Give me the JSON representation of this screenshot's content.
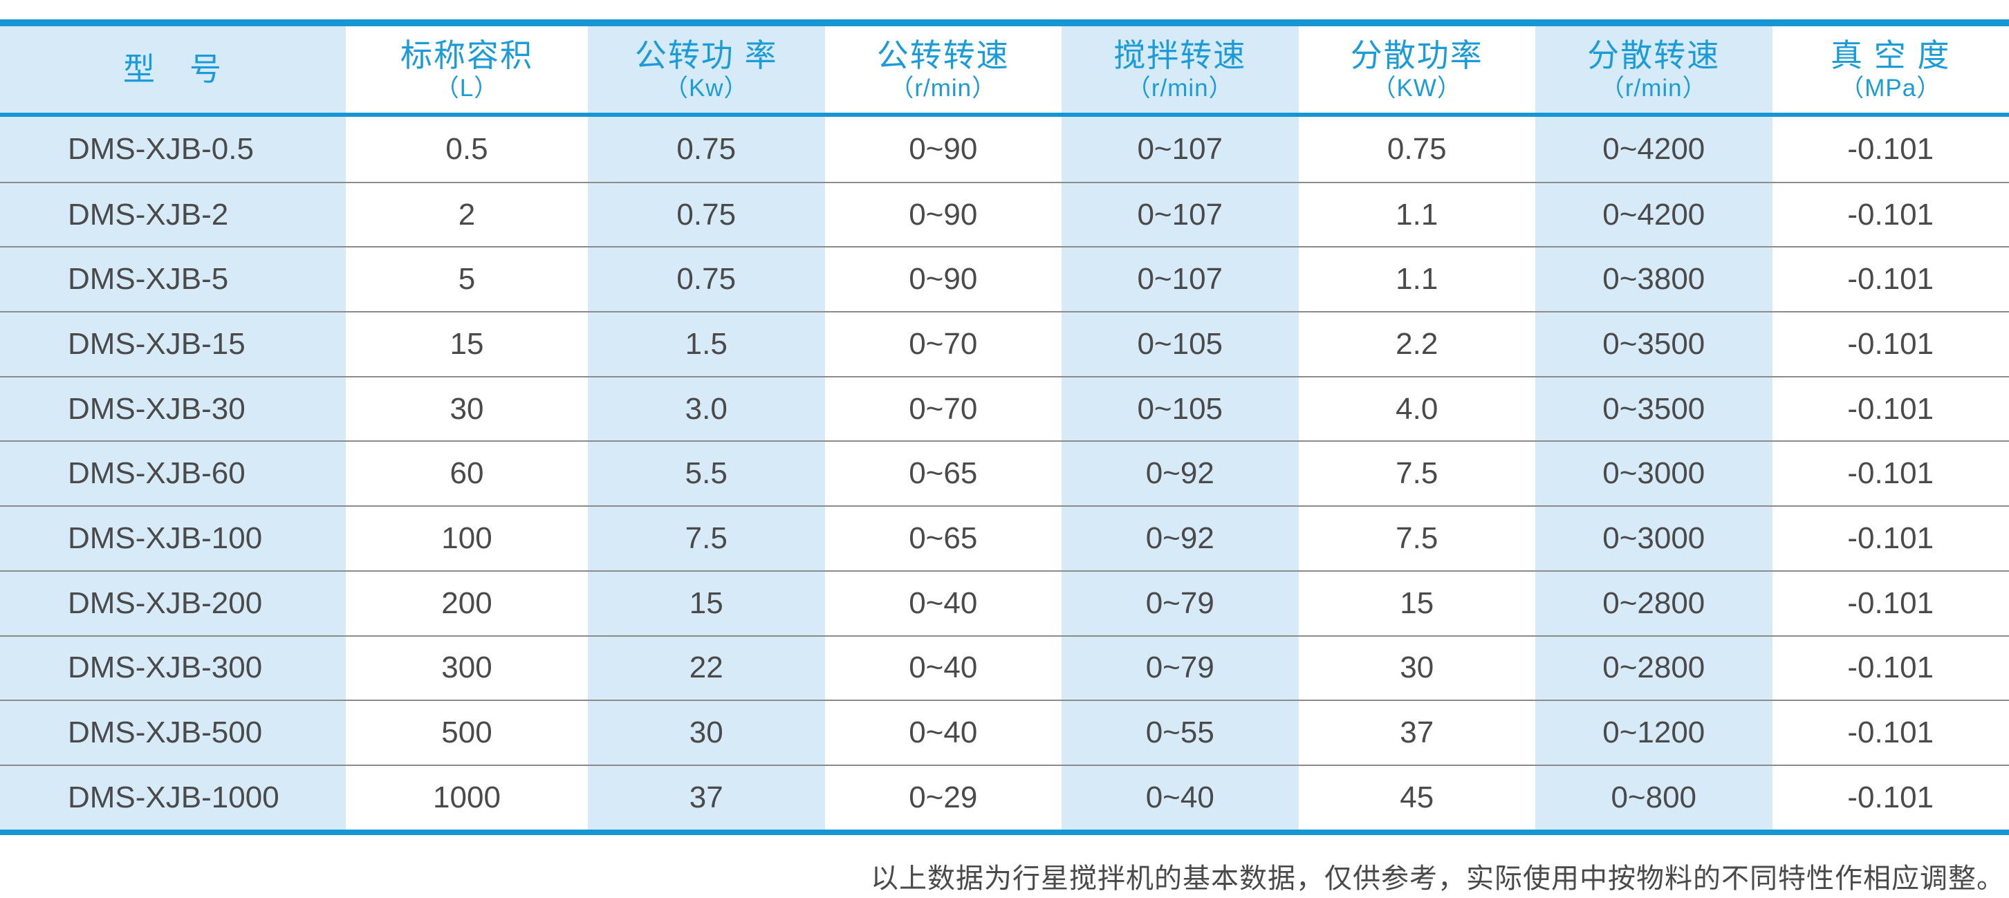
{
  "chart_data": {
    "type": "table",
    "columns": [
      {
        "title": "型　号",
        "unit": ""
      },
      {
        "title": "标称容积",
        "unit": "（L）"
      },
      {
        "title": "公转功 率",
        "unit": "（Kw）"
      },
      {
        "title": "公转转速",
        "unit": "（r/min）"
      },
      {
        "title": "搅拌转速",
        "unit": "（r/min）"
      },
      {
        "title": "分散功率",
        "unit": "（KW）"
      },
      {
        "title": "分散转速",
        "unit": "（r/min）"
      },
      {
        "title": "真 空 度",
        "unit": "（MPa）"
      }
    ],
    "rows": [
      [
        "DMS-XJB-0.5",
        "0.5",
        "0.75",
        "0~90",
        "0~107",
        "0.75",
        "0~4200",
        "-0.101"
      ],
      [
        "DMS-XJB-2",
        "2",
        "0.75",
        "0~90",
        "0~107",
        "1.1",
        "0~4200",
        "-0.101"
      ],
      [
        "DMS-XJB-5",
        "5",
        "0.75",
        "0~90",
        "0~107",
        "1.1",
        "0~3800",
        "-0.101"
      ],
      [
        "DMS-XJB-15",
        "15",
        "1.5",
        "0~70",
        "0~105",
        "2.2",
        "0~3500",
        "-0.101"
      ],
      [
        "DMS-XJB-30",
        "30",
        "3.0",
        "0~70",
        "0~105",
        "4.0",
        "0~3500",
        "-0.101"
      ],
      [
        "DMS-XJB-60",
        "60",
        "5.5",
        "0~65",
        "0~92",
        "7.5",
        "0~3000",
        "-0.101"
      ],
      [
        "DMS-XJB-100",
        "100",
        "7.5",
        "0~65",
        "0~92",
        "7.5",
        "0~3000",
        "-0.101"
      ],
      [
        "DMS-XJB-200",
        "200",
        "15",
        "0~40",
        "0~79",
        "15",
        "0~2800",
        "-0.101"
      ],
      [
        "DMS-XJB-300",
        "300",
        "22",
        "0~40",
        "0~79",
        "30",
        "0~2800",
        "-0.101"
      ],
      [
        "DMS-XJB-500",
        "500",
        "30",
        "0~40",
        "0~55",
        "37",
        "0~1200",
        "-0.101"
      ],
      [
        "DMS-XJB-1000",
        "1000",
        "37",
        "0~29",
        "0~40",
        "45",
        "0~800",
        "-0.101"
      ]
    ]
  },
  "footnote": "以上数据为行星搅拌机的基本数据，仅供参考，实际使用中按物料的不同特性作相应调整。",
  "colors": {
    "accent": "#1697d4",
    "header_text": "#1b9bd8",
    "cell_blue": "#d7eaf7",
    "row_line": "#8b8b8b",
    "data_text": "#4a4a4a",
    "footnote_text": "#4a4a4a"
  }
}
